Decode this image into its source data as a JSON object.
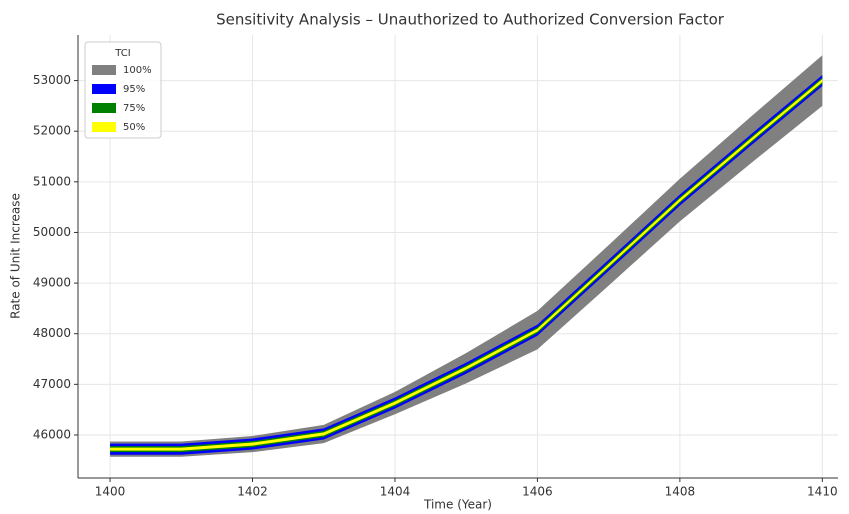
{
  "chart_data": {
    "type": "band",
    "title": "Sensitivity Analysis – Unauthorized to Authorized Conversion Factor",
    "x_label": "Time (Year)",
    "y_label": "Rate of Unit Increase",
    "legend_title": "TCI",
    "legend_position": "upper left",
    "grid": true,
    "x": [
      1400,
      1401,
      1402,
      1403,
      1404,
      1405,
      1406,
      1407,
      1408,
      1409,
      1410
    ],
    "xlim": [
      1399.55,
      1410.22
    ],
    "xticks": [
      1400,
      1402,
      1404,
      1406,
      1408,
      1410
    ],
    "ylim": [
      45150,
      53900
    ],
    "yticks": [
      46000,
      47000,
      48000,
      49000,
      50000,
      51000,
      52000,
      53000
    ],
    "series": [
      {
        "name": "100%",
        "color": "#808080",
        "lower": [
          45570,
          45570,
          45660,
          45840,
          46410,
          47020,
          47690,
          48950,
          50220,
          51370,
          52500
        ],
        "upper": [
          45870,
          45870,
          45980,
          46200,
          46850,
          47620,
          48450,
          49750,
          51060,
          52290,
          53500
        ]
      },
      {
        "name": "95%",
        "color": "#0000ff",
        "lower": [
          45610,
          45610,
          45710,
          45910,
          46520,
          47210,
          47960,
          49240,
          50530,
          51720,
          52890
        ],
        "upper": [
          45830,
          45830,
          45930,
          46130,
          46740,
          47430,
          48180,
          49460,
          50750,
          51940,
          53110
        ]
      },
      {
        "name": "75%",
        "color": "#008000",
        "lower": [
          45660,
          45660,
          45760,
          45960,
          46570,
          47260,
          48010,
          49290,
          50580,
          51770,
          52940
        ],
        "upper": [
          45780,
          45780,
          45880,
          46080,
          46690,
          47380,
          48130,
          49410,
          50700,
          51890,
          53060
        ]
      },
      {
        "name": "50%",
        "color": "#ffff00",
        "lower": [
          45690,
          45690,
          45790,
          45990,
          46600,
          47290,
          48040,
          49320,
          50610,
          51800,
          52970
        ],
        "upper": [
          45750,
          45750,
          45850,
          46050,
          46660,
          47350,
          48100,
          49380,
          50670,
          51860,
          53030
        ]
      }
    ]
  }
}
